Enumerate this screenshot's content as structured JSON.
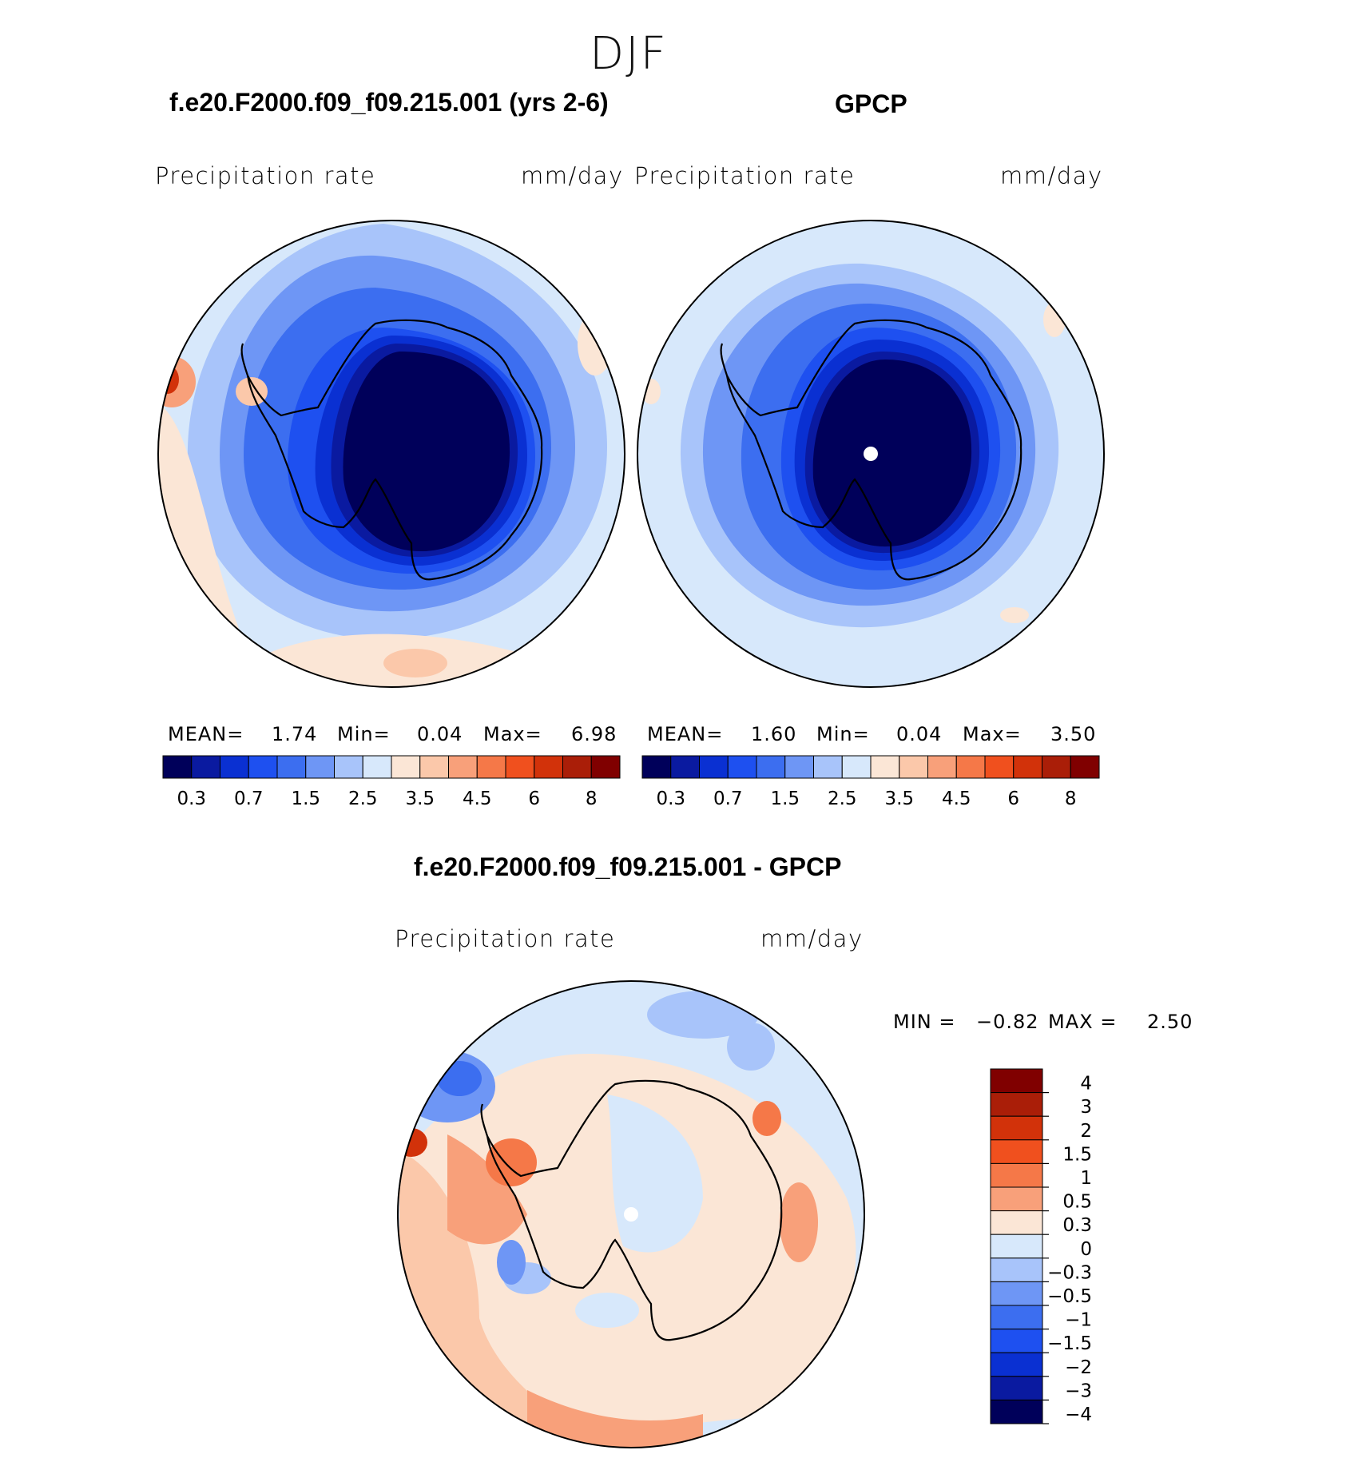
{
  "figure": {
    "season": "DJF"
  },
  "panel_model": {
    "case_title": "f.e20.F2000.f09_f09.215.001 (yrs 2-6)",
    "variable": "Precipitation  rate",
    "units": "mm/day",
    "stats": {
      "mean_label": "MEAN=",
      "mean": "1.74",
      "min_label": "Min=",
      "min": "0.04",
      "max_label": "Max=",
      "max": "6.98"
    }
  },
  "panel_obs": {
    "case_title": "GPCP",
    "variable": "Precipitation  rate",
    "units": "mm/day",
    "stats": {
      "mean_label": "MEAN=",
      "mean": "1.60",
      "min_label": "Min=",
      "min": "0.04",
      "max_label": "Max=",
      "max": "3.50"
    }
  },
  "panel_diff": {
    "case_title": "f.e20.F2000.f09_f09.215.001 - GPCP",
    "variable": "Precipitation  rate",
    "units": "mm/day",
    "stats": {
      "min_label": "MIN =",
      "min": "−0.82",
      "max_label": "MAX =",
      "max": "2.50"
    }
  },
  "colorbar_abs": {
    "colors": [
      "#00005a",
      "#0a1aa0",
      "#0a30d2",
      "#1e50f0",
      "#3c6ef0",
      "#6e96f5",
      "#a8c4fa",
      "#d7e8fb",
      "#fbe6d6",
      "#fbc8aa",
      "#f8a07a",
      "#f57848",
      "#f0501e",
      "#d2320a",
      "#aa1e08",
      "#800000"
    ],
    "labels": [
      "0.3",
      "0.7",
      "1.5",
      "2.5",
      "3.5",
      "4.5",
      "6",
      "8"
    ]
  },
  "colorbar_diff": {
    "colors_top_to_bottom": [
      "#800000",
      "#aa1e08",
      "#d2320a",
      "#f0501e",
      "#f57848",
      "#f8a07a",
      "#fbe6d6",
      "#d7e8fb",
      "#a8c4fa",
      "#6e96f5",
      "#3c6ef0",
      "#1e50f0",
      "#0a30d2",
      "#0a1aa0",
      "#00005a"
    ],
    "labels_top_to_bottom": [
      "4",
      "3",
      "2",
      "1.5",
      "1",
      "0.5",
      "0.3",
      "0",
      "−0.3",
      "−0.5",
      "−1",
      "−1.5",
      "−2",
      "−3",
      "−4"
    ]
  },
  "colors": {
    "outline": "#000000",
    "ocean_light": "#d7e8fb",
    "land_dark": "#00005a"
  }
}
